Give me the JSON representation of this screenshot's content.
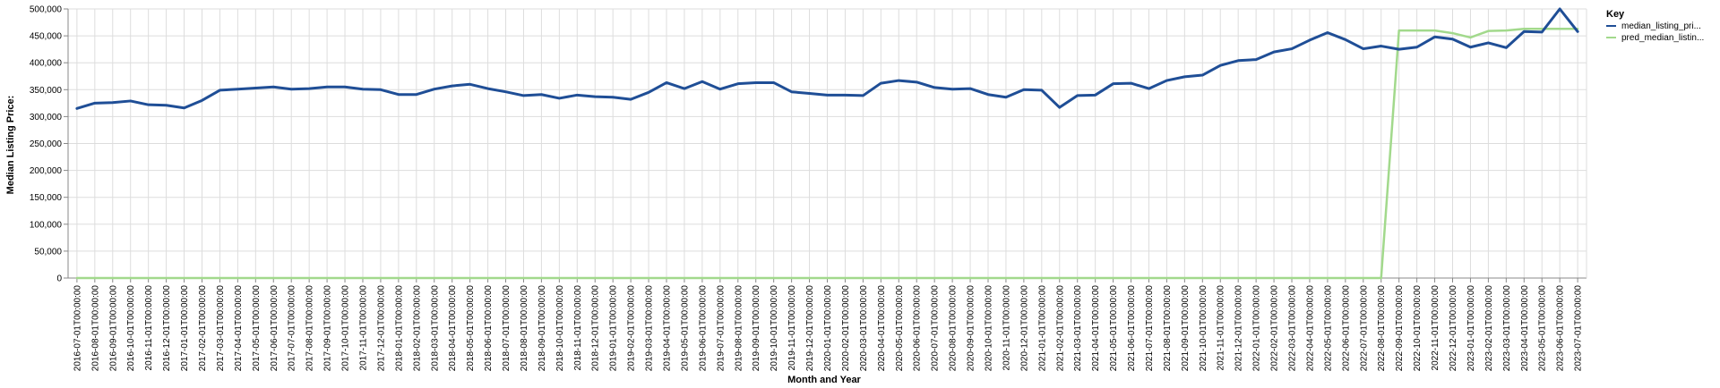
{
  "chart_data": {
    "type": "line",
    "xlabel": "Month and Year",
    "ylabel": "Median Listing Price:",
    "ylim": [
      0,
      500000
    ],
    "yticks": [
      0,
      50000,
      100000,
      150000,
      200000,
      250000,
      300000,
      350000,
      400000,
      450000,
      500000
    ],
    "ytick_labels": [
      "0",
      "50,000",
      "100,000",
      "150,000",
      "200,000",
      "250,000",
      "300,000",
      "350,000",
      "400,000",
      "450,000",
      "500,000"
    ],
    "grid": true,
    "legend": {
      "title": "Key",
      "position": "top-right"
    },
    "x": [
      "2016-07-01T00:00:00",
      "2016-08-01T00:00:00",
      "2016-09-01T00:00:00",
      "2016-10-01T00:00:00",
      "2016-11-01T00:00:00",
      "2016-12-01T00:00:00",
      "2017-01-01T00:00:00",
      "2017-02-01T00:00:00",
      "2017-03-01T00:00:00",
      "2017-04-01T00:00:00",
      "2017-05-01T00:00:00",
      "2017-06-01T00:00:00",
      "2017-07-01T00:00:00",
      "2017-08-01T00:00:00",
      "2017-09-01T00:00:00",
      "2017-10-01T00:00:00",
      "2017-11-01T00:00:00",
      "2017-12-01T00:00:00",
      "2018-01-01T00:00:00",
      "2018-02-01T00:00:00",
      "2018-03-01T00:00:00",
      "2018-04-01T00:00:00",
      "2018-05-01T00:00:00",
      "2018-06-01T00:00:00",
      "2018-07-01T00:00:00",
      "2018-08-01T00:00:00",
      "2018-09-01T00:00:00",
      "2018-10-01T00:00:00",
      "2018-11-01T00:00:00",
      "2018-12-01T00:00:00",
      "2019-01-01T00:00:00",
      "2019-02-01T00:00:00",
      "2019-03-01T00:00:00",
      "2019-04-01T00:00:00",
      "2019-05-01T00:00:00",
      "2019-06-01T00:00:00",
      "2019-07-01T00:00:00",
      "2019-08-01T00:00:00",
      "2019-09-01T00:00:00",
      "2019-10-01T00:00:00",
      "2019-11-01T00:00:00",
      "2019-12-01T00:00:00",
      "2020-01-01T00:00:00",
      "2020-02-01T00:00:00",
      "2020-03-01T00:00:00",
      "2020-04-01T00:00:00",
      "2020-05-01T00:00:00",
      "2020-06-01T00:00:00",
      "2020-07-01T00:00:00",
      "2020-08-01T00:00:00",
      "2020-09-01T00:00:00",
      "2020-10-01T00:00:00",
      "2020-11-01T00:00:00",
      "2020-12-01T00:00:00",
      "2021-01-01T00:00:00",
      "2021-02-01T00:00:00",
      "2021-03-01T00:00:00",
      "2021-04-01T00:00:00",
      "2021-05-01T00:00:00",
      "2021-06-01T00:00:00",
      "2021-07-01T00:00:00",
      "2021-08-01T00:00:00",
      "2021-09-01T00:00:00",
      "2021-10-01T00:00:00",
      "2021-11-01T00:00:00",
      "2021-12-01T00:00:00",
      "2022-01-01T00:00:00",
      "2022-02-01T00:00:00",
      "2022-03-01T00:00:00",
      "2022-04-01T00:00:00",
      "2022-05-01T00:00:00",
      "2022-06-01T00:00:00",
      "2022-07-01T00:00:00",
      "2022-08-01T00:00:00",
      "2022-09-01T00:00:00",
      "2022-10-01T00:00:00",
      "2022-11-01T00:00:00",
      "2022-12-01T00:00:00",
      "2023-01-01T00:00:00",
      "2023-02-01T00:00:00",
      "2023-03-01T00:00:00",
      "2023-04-01T00:00:00",
      "2023-05-01T00:00:00",
      "2023-06-01T00:00:00",
      "2023-07-01T00:00:00"
    ],
    "series": [
      {
        "name": "median_listing_pri...",
        "color": "#1f4e96",
        "values": [
          315000,
          325000,
          326000,
          329000,
          322000,
          321000,
          316000,
          330000,
          349000,
          351000,
          353000,
          355000,
          351000,
          352000,
          355000,
          355000,
          351000,
          350000,
          341000,
          341000,
          351000,
          357000,
          360000,
          352000,
          346000,
          339000,
          341000,
          334000,
          340000,
          337000,
          336000,
          332000,
          345000,
          363000,
          352000,
          365000,
          351000,
          361000,
          363000,
          363000,
          346000,
          343000,
          340000,
          340000,
          339000,
          362000,
          367000,
          364000,
          354000,
          351000,
          352000,
          341000,
          336000,
          350000,
          349000,
          317000,
          339000,
          340000,
          361000,
          362000,
          352000,
          367000,
          374000,
          377000,
          395000,
          404000,
          406000,
          420000,
          426000,
          442000,
          456000,
          443000,
          426000,
          431000,
          425000,
          429000,
          448000,
          444000,
          429000,
          437000,
          428000,
          458000,
          457000,
          500000,
          458000
        ]
      },
      {
        "name": "pred_median_listin...",
        "color": "#a2d98c",
        "values": [
          0,
          0,
          0,
          0,
          0,
          0,
          0,
          0,
          0,
          0,
          0,
          0,
          0,
          0,
          0,
          0,
          0,
          0,
          0,
          0,
          0,
          0,
          0,
          0,
          0,
          0,
          0,
          0,
          0,
          0,
          0,
          0,
          0,
          0,
          0,
          0,
          0,
          0,
          0,
          0,
          0,
          0,
          0,
          0,
          0,
          0,
          0,
          0,
          0,
          0,
          0,
          0,
          0,
          0,
          0,
          0,
          0,
          0,
          0,
          0,
          0,
          0,
          0,
          0,
          0,
          0,
          0,
          0,
          0,
          0,
          0,
          0,
          0,
          0,
          460000,
          460000,
          460000,
          455000,
          447000,
          459000,
          460000,
          463000,
          463000,
          463000,
          463000
        ]
      }
    ]
  }
}
